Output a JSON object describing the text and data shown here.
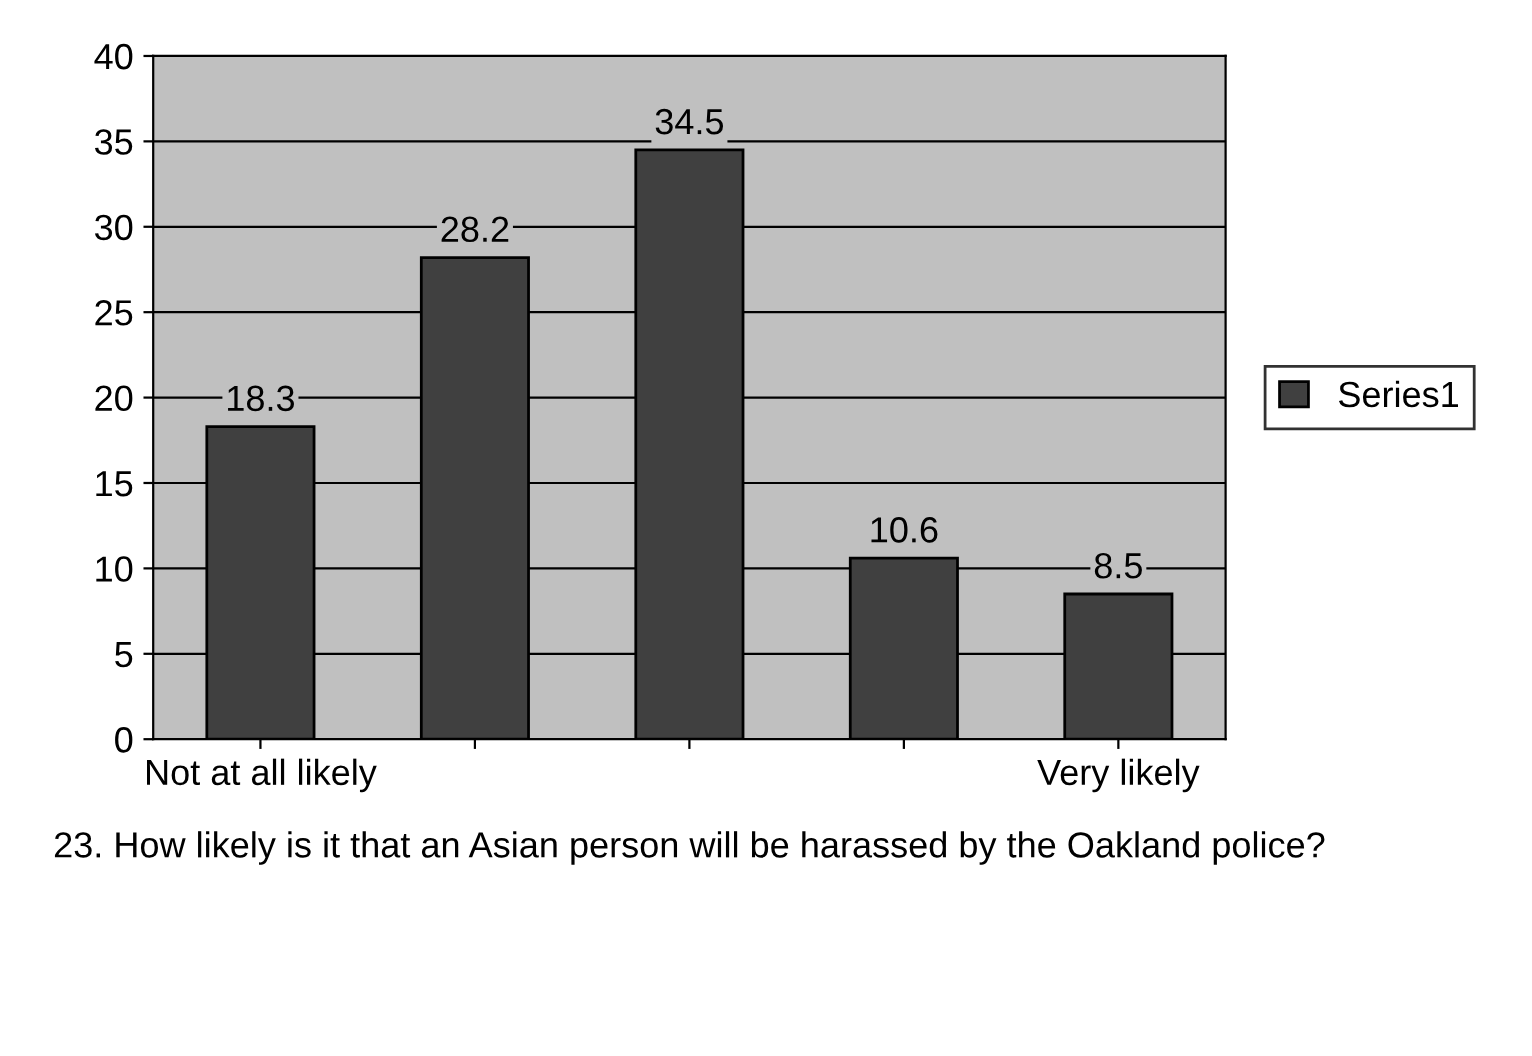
{
  "chart_data": {
    "type": "bar",
    "categories": [
      "Not at all likely",
      null,
      null,
      null,
      "Very likely"
    ],
    "series": [
      {
        "name": "Series1",
        "color": "#404040",
        "values": [
          18.3,
          28.2,
          34.5,
          10.6,
          8.5
        ]
      }
    ],
    "xlabel": "23. How likely is it that an Asian person will be harassed by the Oakland police?",
    "ylim": [
      0,
      40
    ],
    "yticks": [
      0,
      5,
      10,
      15,
      20,
      25,
      30,
      35,
      40
    ],
    "grid": "y",
    "legend": "right",
    "data_labels": true
  }
}
